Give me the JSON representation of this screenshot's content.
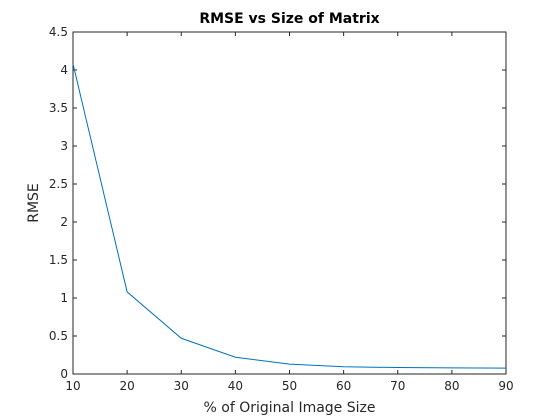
{
  "chart_data": {
    "type": "line",
    "title": "RMSE vs Size of Matrix",
    "xlabel": "% of Original Image Size",
    "ylabel": "RMSE",
    "xlim": [
      10,
      90
    ],
    "ylim": [
      0,
      4.5
    ],
    "xticks": [
      10,
      20,
      30,
      40,
      50,
      60,
      70,
      80,
      90
    ],
    "xtick_labels": [
      "10",
      "20",
      "30",
      "40",
      "50",
      "60",
      "70",
      "80",
      "90"
    ],
    "yticks": [
      0,
      0.5,
      1,
      1.5,
      2,
      2.5,
      3,
      3.5,
      4,
      4.5
    ],
    "ytick_labels": [
      "0",
      "0.5",
      "1",
      "1.5",
      "2",
      "2.5",
      "3",
      "3.5",
      "4",
      "4.5"
    ],
    "grid": false,
    "series": [
      {
        "x": [
          10,
          20,
          30,
          40,
          50,
          60,
          70,
          80,
          90
        ],
        "y": [
          4.08,
          1.08,
          0.47,
          0.22,
          0.13,
          0.095,
          0.085,
          0.08,
          0.078
        ],
        "color": "#0072BD"
      }
    ],
    "axis_color": "#262626"
  }
}
